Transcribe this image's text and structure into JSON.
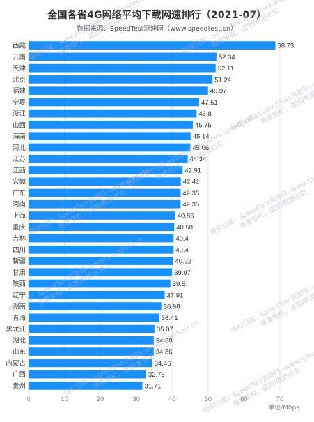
{
  "chart_data": {
    "type": "bar",
    "orientation": "horizontal",
    "title": "全国各省4G网络平均下载网速排行（2021-07）",
    "subtitle": "数据来源：SpeedTest测速网（www.speedtest.cn）",
    "xlabel": "单位/Mbps",
    "xlim": [
      0,
      70
    ],
    "xticks": [
      0,
      10,
      20,
      30,
      40,
      50,
      60,
      70
    ],
    "grid": true,
    "bar_color": "#1890ff",
    "categories": [
      "西藏",
      "云南",
      "天津",
      "北京",
      "福建",
      "宁夏",
      "浙江",
      "山西",
      "海南",
      "河北",
      "江苏",
      "江西",
      "安徽",
      "广东",
      "河南",
      "上海",
      "重庆",
      "吉林",
      "四川",
      "新疆",
      "甘肃",
      "陕西",
      "辽宁",
      "湖南",
      "青海",
      "黑龙江",
      "湖北",
      "山东",
      "内蒙古",
      "广西",
      "贵州"
    ],
    "values": [
      68.73,
      52.34,
      52.11,
      51.24,
      49.97,
      47.51,
      46.8,
      45.75,
      45.14,
      45.06,
      44.34,
      42.91,
      42.41,
      42.35,
      42.35,
      40.86,
      40.58,
      40.4,
      40.4,
      40.22,
      39.97,
      39.5,
      37.91,
      36.98,
      36.41,
      35.07,
      34.88,
      34.86,
      34.46,
      32.76,
      31.71
    ],
    "value_labels": [
      "68.73",
      "52.34",
      "52.11",
      "51.24",
      "49.97",
      "47.51",
      "46.8",
      "45.75",
      "45.14",
      "45.06",
      "44.34",
      "42.91",
      "42.41",
      "42.35",
      "42.35",
      "40.86",
      "40.58",
      "40.4",
      "40.4",
      "40.22",
      "39.97",
      "39.5",
      "37.91",
      "36.98",
      "36.41",
      "35.07",
      "34.88",
      "34.86",
      "34.46",
      "32.76",
      "31.71"
    ]
  },
  "watermark": {
    "line1": "版权归属：SpeedTest测速网--www.speedtest.cn",
    "line2": "尊重版权，盗图/数据必究",
    "color": "#aab2c3"
  }
}
